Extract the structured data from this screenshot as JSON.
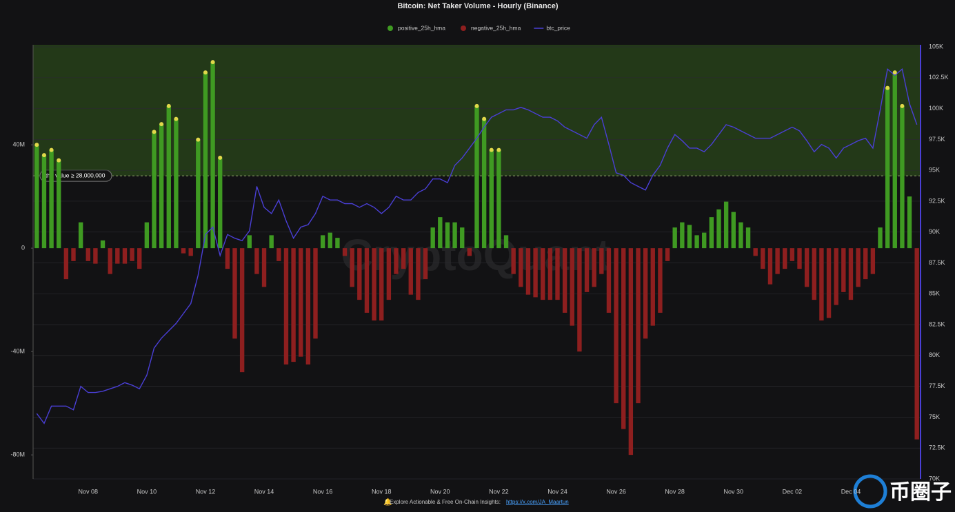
{
  "chart_data": {
    "type": "bar",
    "title": "Bitcoin: Net Taker Volume - Hourly (Binance)",
    "categories": [
      null,
      null,
      null,
      null,
      null,
      null,
      null,
      "Nov 08",
      null,
      null,
      null,
      null,
      null,
      null,
      null,
      "Nov 10",
      null,
      null,
      null,
      null,
      null,
      null,
      null,
      "Nov 12",
      null,
      null,
      null,
      null,
      null,
      null,
      null,
      "Nov 14",
      null,
      null,
      null,
      null,
      null,
      null,
      null,
      "Nov 16",
      null,
      null,
      null,
      null,
      null,
      null,
      null,
      "Nov 18",
      null,
      null,
      null,
      null,
      null,
      null,
      null,
      "Nov 20",
      null,
      null,
      null,
      null,
      null,
      null,
      null,
      "Nov 22",
      null,
      null,
      null,
      null,
      null,
      null,
      null,
      "Nov 24",
      null,
      null,
      null,
      null,
      null,
      null,
      null,
      "Nov 26",
      null,
      null,
      null,
      null,
      null,
      null,
      null,
      "Nov 28",
      null,
      null,
      null,
      null,
      null,
      null,
      null,
      "Nov 30",
      null,
      null,
      null,
      null,
      null,
      null,
      null,
      "Dec 02",
      null,
      null,
      null,
      null,
      null,
      null,
      null,
      "Dec 04",
      null,
      null,
      null,
      null,
      null,
      null,
      null,
      null,
      null
    ],
    "series": [
      {
        "name": "positive_25h_hma",
        "color": "#3f9a22",
        "values": [
          40000000.0,
          36000000.0,
          38000000.0,
          34000000.0,
          null,
          null,
          10000000.0,
          null,
          null,
          3000000.0,
          null,
          null,
          null,
          null,
          null,
          10000000.0,
          45000000.0,
          48000000.0,
          55000000.0,
          50000000.0,
          null,
          null,
          42000000.0,
          68000000.0,
          72000000.0,
          35000000.0,
          null,
          null,
          null,
          5000000.0,
          null,
          null,
          5000000.0,
          null,
          null,
          null,
          null,
          null,
          null,
          5000000.0,
          6000000.0,
          4000000.0,
          null,
          null,
          null,
          null,
          null,
          null,
          null,
          null,
          null,
          null,
          null,
          null,
          8000000.0,
          12000000.0,
          10000000.0,
          10000000.0,
          8000000.0,
          null,
          55000000.0,
          50000000.0,
          38000000.0,
          38000000.0,
          5000000.0,
          null,
          null,
          null,
          null,
          null,
          null,
          null,
          null,
          null,
          null,
          null,
          null,
          null,
          null,
          null,
          null,
          null,
          null,
          null,
          null,
          null,
          null,
          8000000.0,
          10000000.0,
          9000000.0,
          5000000.0,
          6000000.0,
          12000000.0,
          15000000.0,
          18000000.0,
          14000000.0,
          10000000.0,
          8000000.0,
          null,
          null,
          null,
          null,
          null,
          null,
          null,
          null,
          null,
          null,
          null,
          null,
          null,
          null,
          null,
          null,
          null,
          8000000.0,
          62000000.0,
          68000000.0,
          55000000.0,
          20000000.0,
          null
        ]
      },
      {
        "name": "negative_25h_hma",
        "color": "#8e1f1f",
        "values": [
          null,
          null,
          null,
          null,
          -12000000.0,
          -5000000.0,
          null,
          -5000000.0,
          -6000000.0,
          null,
          -10000000.0,
          -6000000.0,
          -6000000.0,
          -5000000.0,
          -8000000.0,
          null,
          null,
          null,
          null,
          null,
          -2000000.0,
          -3000000.0,
          null,
          null,
          null,
          null,
          -8000000.0,
          -35000000.0,
          -48000000.0,
          null,
          -10000000.0,
          -15000000.0,
          null,
          -5000000.0,
          -45000000.0,
          -44000000.0,
          -42000000.0,
          -45000000.0,
          -35000000.0,
          null,
          null,
          null,
          -3000000.0,
          -15000000.0,
          -20000000.0,
          -25000000.0,
          -28000000.0,
          -28000000.0,
          -20000000.0,
          -10000000.0,
          -8000000.0,
          -18000000.0,
          -20000000.0,
          -12000000.0,
          null,
          null,
          null,
          null,
          null,
          -3000000.0,
          null,
          null,
          null,
          null,
          null,
          -10000000.0,
          -15000000.0,
          -18000000.0,
          -19000000.0,
          -20000000.0,
          -20000000.0,
          -20000000.0,
          -25000000.0,
          -30000000.0,
          -40000000.0,
          -17000000.0,
          -15000000.0,
          -10000000.0,
          -25000000.0,
          -60000000.0,
          -70000000.0,
          -80000000.0,
          -60000000.0,
          -35000000.0,
          -30000000.0,
          -25000000.0,
          -5000000.0,
          null,
          null,
          null,
          null,
          null,
          null,
          null,
          null,
          null,
          null,
          null,
          -3000000.0,
          -8000000.0,
          -14000000.0,
          -10000000.0,
          -8000000.0,
          -5000000.0,
          -8000000.0,
          -15000000.0,
          -20000000.0,
          -28000000.0,
          -27000000.0,
          -22000000.0,
          -17000000.0,
          -20000000.0,
          -15000000.0,
          -12000000.0,
          -10000000.0,
          null,
          null,
          null,
          null,
          null,
          -74000000.0
        ]
      },
      {
        "name": "btc_price",
        "color": "#4a3fd6",
        "axis": "y2",
        "values": [
          75300,
          74500,
          75900,
          75900,
          75900,
          75600,
          77500,
          77000,
          77000,
          77100,
          77300,
          77500,
          77800,
          77600,
          77300,
          78400,
          80600,
          81400,
          82000,
          82600,
          83400,
          84200,
          86500,
          89800,
          90400,
          88100,
          89800,
          89500,
          89300,
          90100,
          93700,
          92000,
          91500,
          92600,
          90900,
          89500,
          90400,
          90600,
          91500,
          92900,
          92600,
          92600,
          92300,
          92300,
          92000,
          92300,
          92000,
          91500,
          92000,
          92900,
          92600,
          92600,
          93200,
          93500,
          94300,
          94300,
          94000,
          95400,
          96000,
          96800,
          97600,
          98500,
          99300,
          99600,
          99900,
          99900,
          100100,
          99900,
          99600,
          99300,
          99300,
          99000,
          98500,
          98200,
          97900,
          97600,
          98700,
          99300,
          97100,
          94800,
          94600,
          94000,
          93700,
          93400,
          94600,
          95400,
          96800,
          97900,
          97400,
          96800,
          96800,
          96500,
          97100,
          97900,
          98700,
          98500,
          98200,
          97900,
          97600,
          97600,
          97600,
          97900,
          98200,
          98500,
          98200,
          97400,
          96500,
          97100,
          96800,
          96000,
          96800,
          97100,
          97400,
          97600,
          96800,
          99900,
          103200,
          102700,
          103200,
          100400,
          98700
        ]
      }
    ],
    "ylim": [
      -89300000,
      78700000
    ],
    "yticks": [
      {
        "value": -80000000,
        "label": "-80M"
      },
      {
        "value": -40000000,
        "label": "-40M"
      },
      0,
      {
        "value": 40000000,
        "label": "40M"
      }
    ],
    "y2lim": [
      70000,
      105170
    ],
    "y2ticks": [
      {
        "value": 70000,
        "label": "70K"
      },
      {
        "value": 72500,
        "label": "72.5K"
      },
      {
        "value": 75000,
        "label": "75K"
      },
      {
        "value": 77500,
        "label": "77.5K"
      },
      {
        "value": 80000,
        "label": "80K"
      },
      {
        "value": 82500,
        "label": "82.5K"
      },
      {
        "value": 85000,
        "label": "85K"
      },
      {
        "value": 87500,
        "label": "87.5K"
      },
      {
        "value": 90000,
        "label": "90K"
      },
      {
        "value": 92500,
        "label": "92.5K"
      },
      {
        "value": 95000,
        "label": "95K"
      },
      {
        "value": 97500,
        "label": "97.5K"
      },
      {
        "value": 100000,
        "label": "100K"
      },
      {
        "value": 102500,
        "label": "102.5K"
      },
      {
        "value": 105000,
        "label": "105K"
      }
    ],
    "threshold": {
      "value": 28000000,
      "label": "the value ≥ 28,000,000",
      "color": "#3a6b1c",
      "marker_color": "#e0d84a"
    },
    "grid": true,
    "watermark": "CryptoQuant",
    "footer_text": "Explore Actionable & Free On-Chain Insights:",
    "footer_link": "https://x.com/JA_Maartun",
    "logo_text": "币圈子"
  }
}
